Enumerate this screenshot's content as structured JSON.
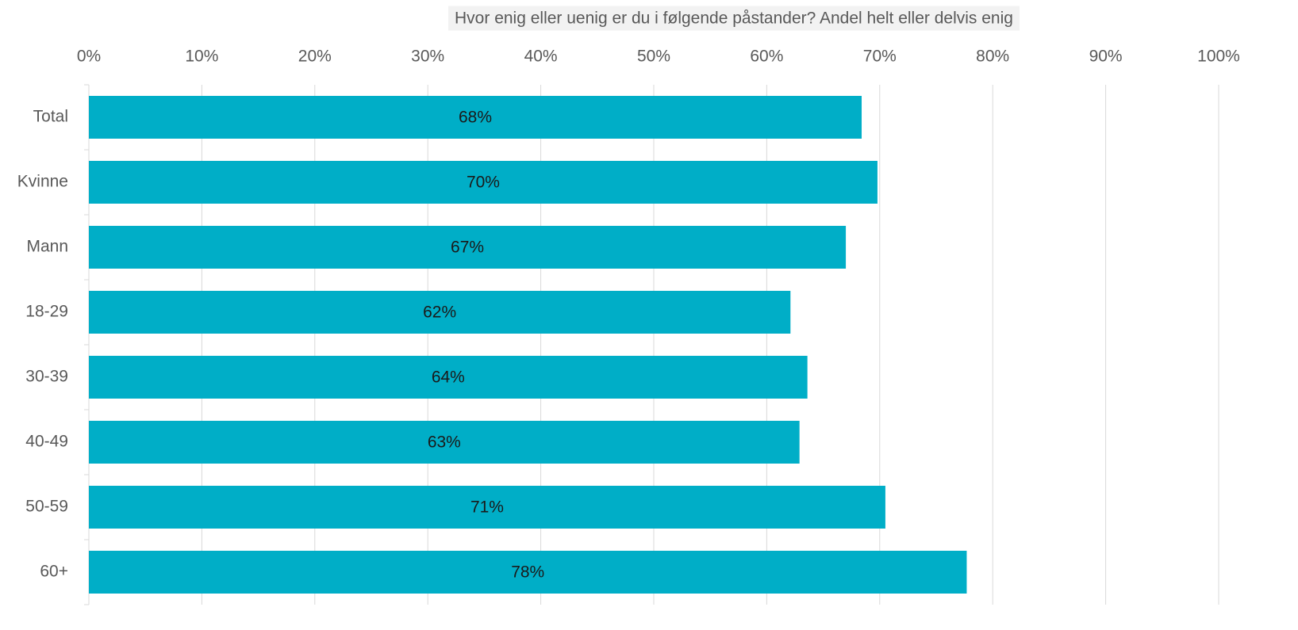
{
  "chart_data": {
    "type": "bar",
    "orientation": "horizontal",
    "title": "Hvor enig eller uenig er du i følgende påstander? Andel helt eller delvis enig",
    "categories": [
      "Total",
      "Kvinne",
      "Mann",
      "18-29",
      "30-39",
      "40-49",
      "50-59",
      "60+"
    ],
    "values": [
      68.4,
      69.8,
      67.0,
      62.1,
      63.6,
      62.9,
      70.5,
      77.7
    ],
    "value_labels": [
      "68%",
      "70%",
      "67%",
      "62%",
      "64%",
      "63%",
      "71%",
      "78%"
    ],
    "color": "#00aec7",
    "xlim": [
      0,
      100
    ],
    "xticks": [
      {
        "value": 0,
        "label": "0%"
      },
      {
        "value": 10,
        "label": "10%"
      },
      {
        "value": 20,
        "label": "20%"
      },
      {
        "value": 30,
        "label": "30%"
      },
      {
        "value": 40,
        "label": "40%"
      },
      {
        "value": 50,
        "label": "50%"
      },
      {
        "value": 60,
        "label": "60%"
      },
      {
        "value": 70,
        "label": "70%"
      },
      {
        "value": 80,
        "label": "80%"
      },
      {
        "value": 90,
        "label": "90%"
      },
      {
        "value": 100,
        "label": "100%"
      }
    ],
    "grid": true
  }
}
